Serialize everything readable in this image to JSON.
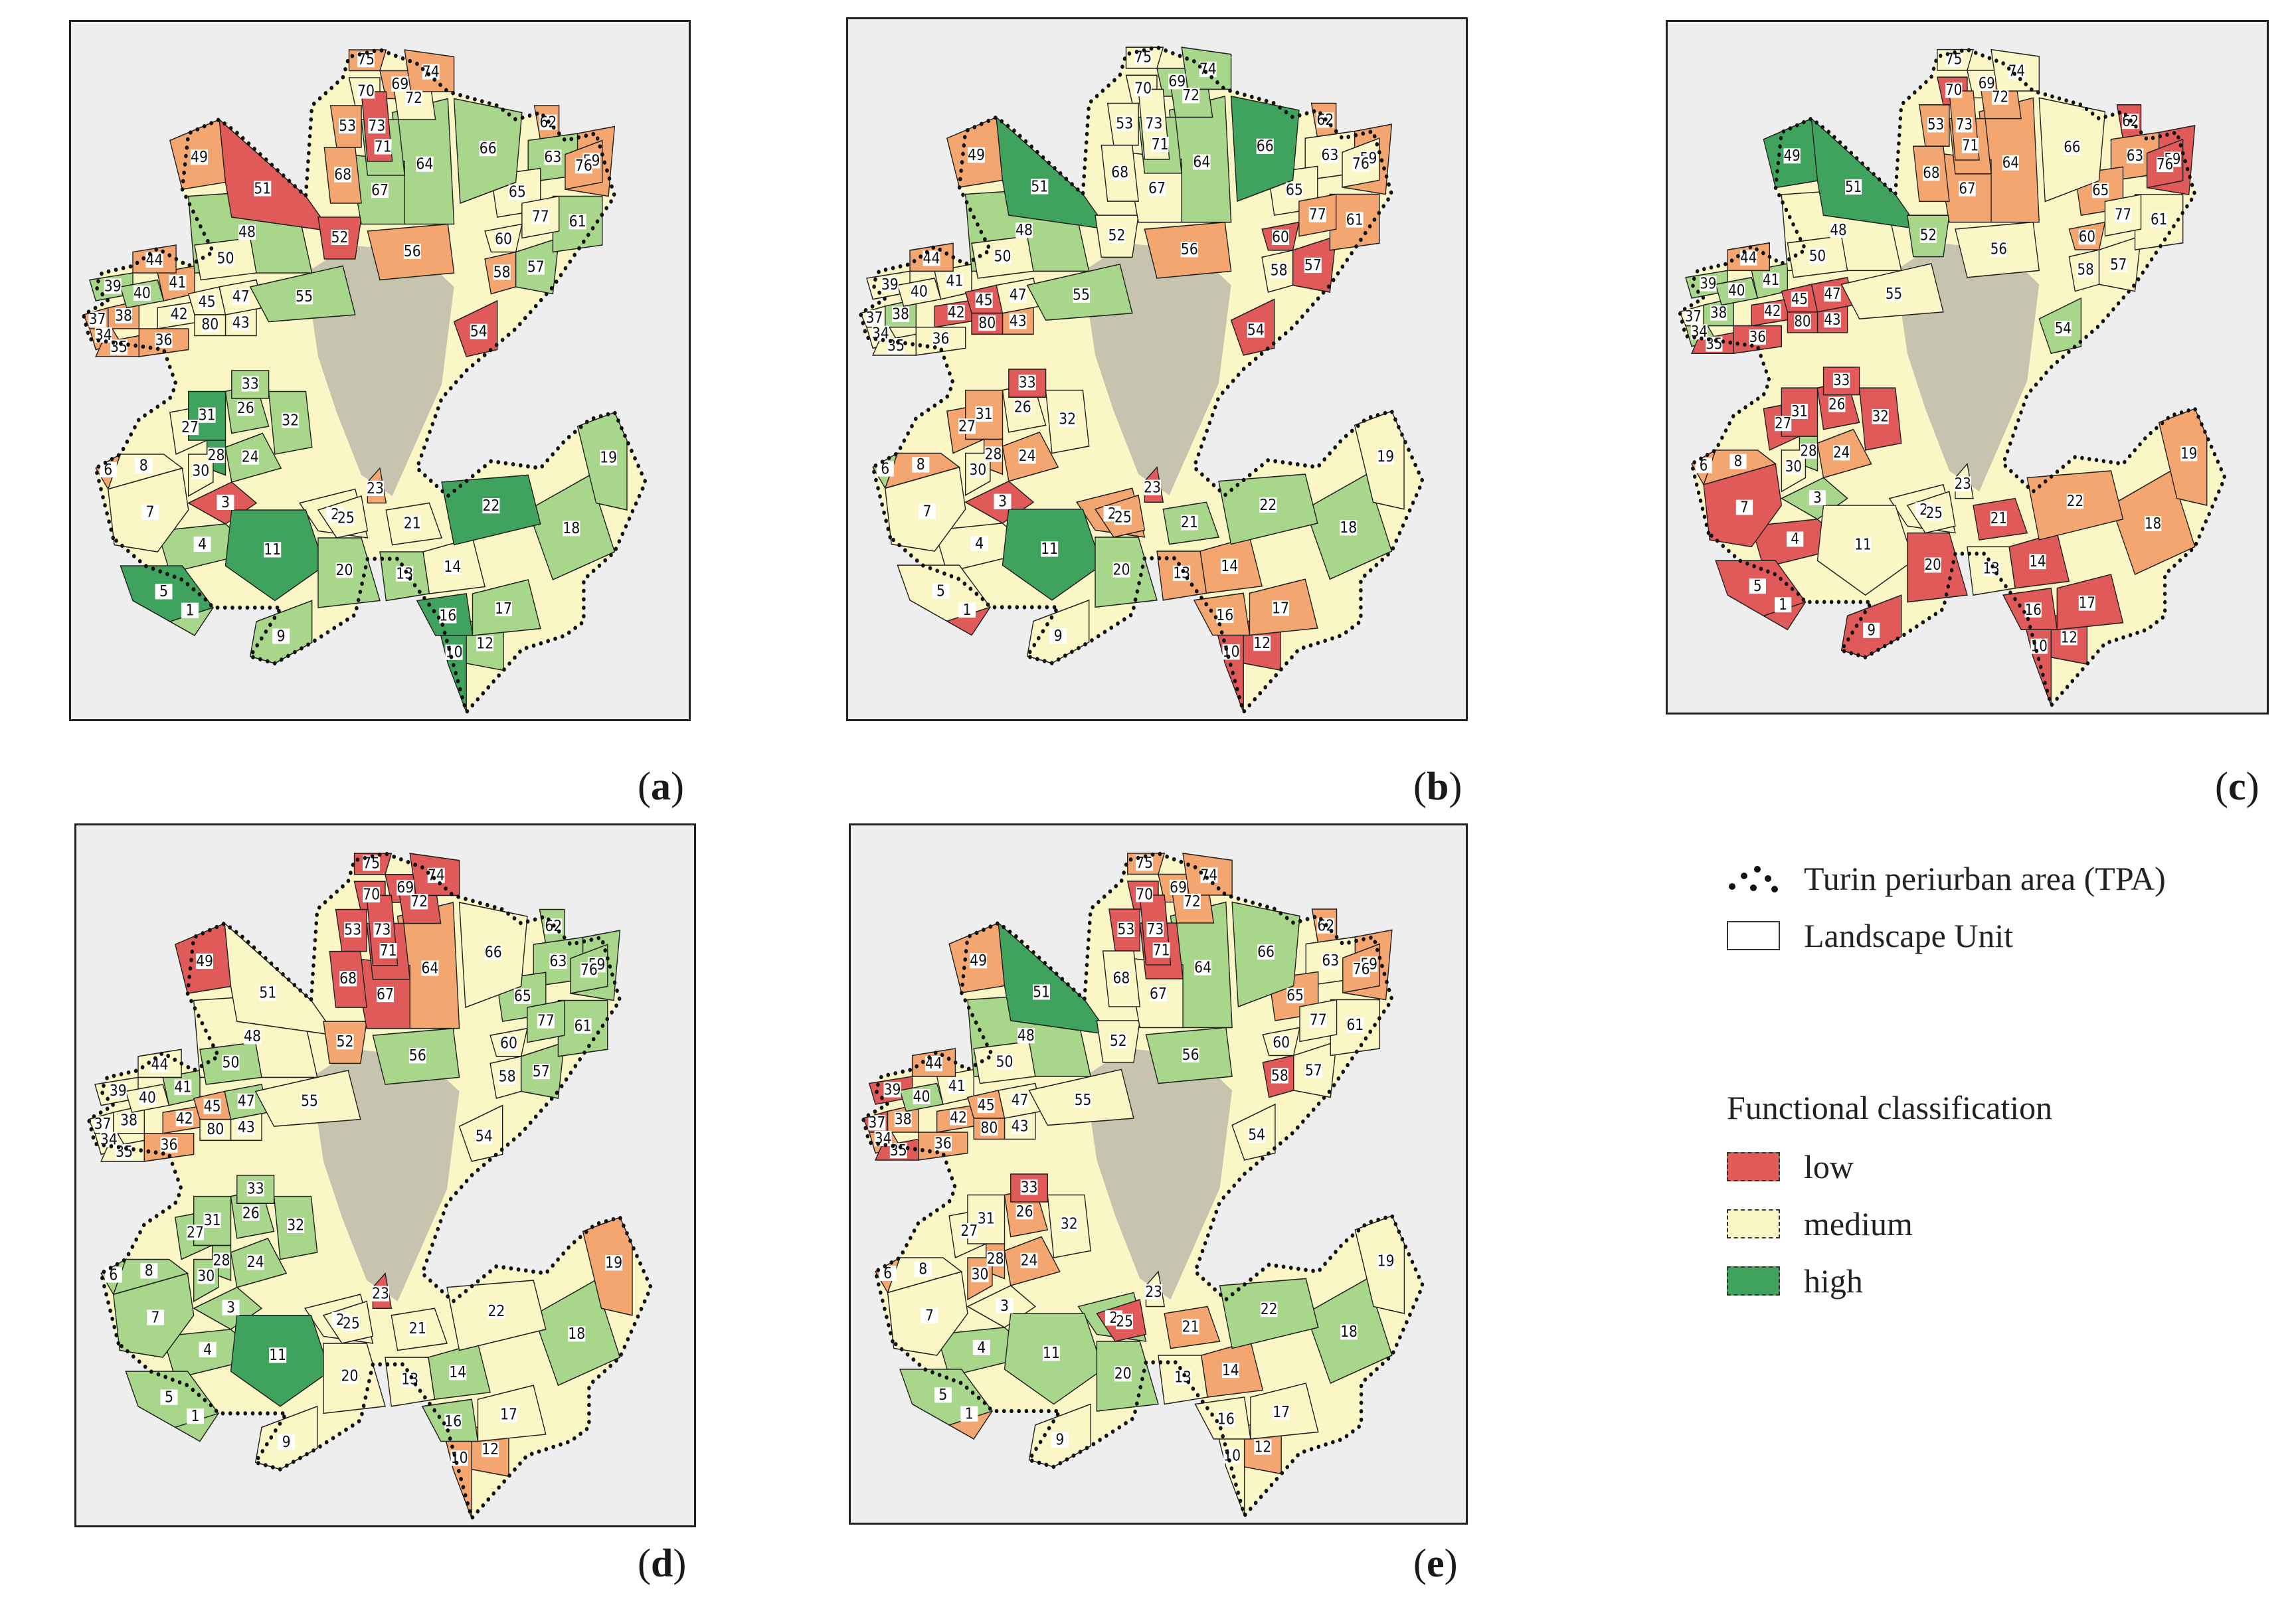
{
  "panels": [
    {
      "id": "a",
      "caption_letter": "a",
      "paren_open": "(",
      "paren_close": ")"
    },
    {
      "id": "b",
      "caption_letter": "b",
      "paren_open": "(",
      "paren_close": ")"
    },
    {
      "id": "c",
      "caption_letter": "c",
      "paren_open": "(",
      "paren_close": ")"
    },
    {
      "id": "d",
      "caption_letter": "d",
      "paren_open": "(",
      "paren_close": ")"
    },
    {
      "id": "e",
      "caption_letter": "e",
      "paren_open": "(",
      "paren_close": ")"
    }
  ],
  "legend": {
    "tpa_label": "Turin periurban area (TPA)",
    "landscape_unit_label": "Landscape Unit",
    "classification_title": "Functional classification",
    "classes": [
      {
        "label": "low",
        "color": "#e05a5a"
      },
      {
        "label": "medium",
        "color": "#fbf6c6"
      },
      {
        "label": "high",
        "color": "#3fa35e"
      }
    ]
  },
  "colors": {
    "low": "#e05a5a",
    "medium_low": "#f3a66f",
    "medium": "#fbf6c6",
    "medium_high": "#a8d68a",
    "high": "#3fa35e",
    "urban": "#9a9a9a",
    "background": "#eeeeee"
  },
  "unit_classes": {
    "a": {
      "1": "mh",
      "2": "m",
      "3": "l",
      "4": "mh",
      "5": "h",
      "6": "ml",
      "7": "m",
      "8": "m",
      "9": "mh",
      "10": "h",
      "11": "h",
      "12": "mh",
      "13": "mh",
      "14": "m",
      "16": "h",
      "17": "mh",
      "18": "mh",
      "19": "mh",
      "20": "mh",
      "21": "m",
      "22": "h",
      "23": "ml",
      "24": "mh",
      "25": "m",
      "26": "mh",
      "27": "m",
      "28": "h",
      "30": "m",
      "31": "h",
      "32": "mh",
      "33": "mh",
      "34": "ml",
      "35": "ml",
      "36": "ml",
      "37": "ml",
      "38": "ml",
      "39": "mh",
      "40": "mh",
      "41": "ml",
      "42": "m",
      "43": "m",
      "44": "ml",
      "45": "m",
      "47": "m",
      "48": "mh",
      "49": "ml",
      "50": "m",
      "51": "l",
      "52": "l",
      "53": "ml",
      "54": "l",
      "55": "mh",
      "56": "ml",
      "57": "mh",
      "58": "ml",
      "59": "ml",
      "60": "m",
      "61": "mh",
      "62": "ml",
      "63": "mh",
      "64": "mh",
      "65": "m",
      "66": "mh",
      "67": "mh",
      "68": "ml",
      "69": "ml",
      "70": "m",
      "71": "mh",
      "72": "m",
      "73": "l",
      "74": "ml",
      "75": "ml",
      "76": "ml",
      "77": "m",
      "80": "m"
    },
    "b": {
      "1": "l",
      "2": "ml",
      "3": "l",
      "4": "m",
      "5": "m",
      "6": "mh",
      "7": "m",
      "8": "ml",
      "9": "m",
      "10": "l",
      "11": "h",
      "12": "l",
      "13": "ml",
      "14": "ml",
      "16": "ml",
      "17": "ml",
      "18": "mh",
      "19": "m",
      "20": "mh",
      "21": "mh",
      "22": "mh",
      "23": "l",
      "24": "ml",
      "25": "ml",
      "26": "m",
      "27": "ml",
      "28": "ml",
      "30": "m",
      "31": "ml",
      "32": "m",
      "33": "l",
      "34": "m",
      "35": "m",
      "36": "m",
      "37": "m",
      "38": "mh",
      "39": "m",
      "40": "m",
      "41": "m",
      "42": "l",
      "43": "ml",
      "44": "ml",
      "45": "l",
      "47": "m",
      "48": "mh",
      "49": "ml",
      "50": "m",
      "51": "h",
      "52": "m",
      "53": "m",
      "54": "l",
      "55": "mh",
      "56": "ml",
      "57": "l",
      "58": "m",
      "59": "ml",
      "60": "l",
      "61": "ml",
      "62": "ml",
      "63": "m",
      "64": "mh",
      "65": "m",
      "66": "h",
      "67": "m",
      "68": "m",
      "69": "mh",
      "70": "m",
      "71": "mh",
      "72": "mh",
      "73": "m",
      "74": "mh",
      "75": "m",
      "76": "m",
      "77": "ml",
      "80": "l"
    },
    "c": {
      "1": "l",
      "2": "m",
      "3": "mh",
      "4": "l",
      "5": "l",
      "6": "ml",
      "7": "l",
      "8": "ml",
      "9": "l",
      "10": "l",
      "11": "m",
      "12": "l",
      "13": "m",
      "14": "l",
      "16": "l",
      "17": "l",
      "18": "ml",
      "19": "ml",
      "20": "l",
      "21": "l",
      "22": "ml",
      "23": "m",
      "24": "ml",
      "25": "m",
      "26": "l",
      "27": "l",
      "28": "mh",
      "30": "m",
      "31": "l",
      "32": "l",
      "33": "l",
      "34": "mh",
      "35": "l",
      "36": "l",
      "37": "m",
      "38": "mh",
      "39": "mh",
      "40": "mh",
      "41": "mh",
      "42": "l",
      "43": "l",
      "44": "ml",
      "45": "l",
      "47": "l",
      "48": "m",
      "49": "h",
      "50": "m",
      "51": "h",
      "52": "mh",
      "53": "ml",
      "54": "mh",
      "55": "m",
      "56": "m",
      "57": "m",
      "58": "m",
      "59": "l",
      "60": "ml",
      "61": "m",
      "62": "l",
      "63": "ml",
      "64": "ml",
      "65": "ml",
      "66": "m",
      "67": "ml",
      "68": "ml",
      "69": "m",
      "70": "l",
      "71": "ml",
      "72": "ml",
      "73": "ml",
      "74": "m",
      "75": "m",
      "76": "l",
      "77": "m",
      "80": "l"
    },
    "d": {
      "1": "mh",
      "2": "m",
      "3": "mh",
      "4": "mh",
      "5": "mh",
      "6": "mh",
      "7": "mh",
      "8": "mh",
      "9": "m",
      "10": "ml",
      "11": "h",
      "12": "ml",
      "13": "m",
      "14": "mh",
      "16": "mh",
      "17": "m",
      "18": "mh",
      "19": "ml",
      "20": "m",
      "21": "m",
      "22": "m",
      "23": "l",
      "24": "mh",
      "25": "m",
      "26": "mh",
      "27": "mh",
      "28": "mh",
      "30": "mh",
      "31": "mh",
      "32": "mh",
      "33": "mh",
      "34": "m",
      "35": "m",
      "36": "ml",
      "37": "m",
      "38": "m",
      "39": "m",
      "40": "m",
      "41": "mh",
      "42": "ml",
      "43": "m",
      "44": "m",
      "45": "ml",
      "47": "mh",
      "48": "m",
      "49": "l",
      "50": "mh",
      "51": "m",
      "52": "ml",
      "53": "l",
      "54": "m",
      "55": "m",
      "56": "mh",
      "57": "mh",
      "58": "m",
      "59": "mh",
      "60": "m",
      "61": "mh",
      "62": "mh",
      "63": "mh",
      "64": "ml",
      "65": "mh",
      "66": "m",
      "67": "l",
      "68": "l",
      "69": "l",
      "70": "l",
      "71": "l",
      "72": "l",
      "73": "l",
      "74": "l",
      "75": "l",
      "76": "mh",
      "77": "mh",
      "80": "m"
    },
    "e": {
      "1": "ml",
      "2": "mh",
      "3": "m",
      "4": "mh",
      "5": "mh",
      "6": "ml",
      "7": "m",
      "8": "m",
      "9": "m",
      "10": "m",
      "11": "mh",
      "12": "ml",
      "13": "m",
      "14": "ml",
      "16": "m",
      "17": "m",
      "18": "mh",
      "19": "m",
      "20": "mh",
      "21": "ml",
      "22": "mh",
      "23": "m",
      "24": "ml",
      "25": "l",
      "26": "ml",
      "27": "m",
      "28": "ml",
      "30": "ml",
      "31": "m",
      "32": "m",
      "33": "l",
      "34": "ml",
      "35": "l",
      "36": "ml",
      "37": "l",
      "38": "ml",
      "39": "l",
      "40": "mh",
      "41": "m",
      "42": "ml",
      "43": "m",
      "44": "ml",
      "45": "ml",
      "47": "m",
      "48": "mh",
      "49": "ml",
      "50": "m",
      "51": "h",
      "52": "m",
      "53": "l",
      "54": "m",
      "55": "m",
      "56": "mh",
      "57": "m",
      "58": "l",
      "59": "ml",
      "60": "m",
      "61": "m",
      "62": "ml",
      "63": "m",
      "64": "mh",
      "65": "ml",
      "66": "mh",
      "67": "m",
      "68": "m",
      "69": "ml",
      "70": "l",
      "71": "l",
      "72": "ml",
      "73": "l",
      "74": "ml",
      "75": "ml",
      "76": "ml",
      "77": "m",
      "80": "ml"
    }
  }
}
